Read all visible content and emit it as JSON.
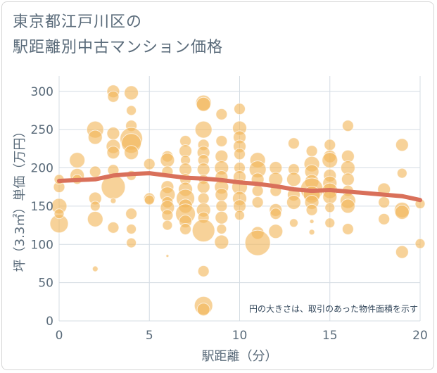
{
  "chart_data": {
    "type": "scatter",
    "title_lines": [
      "東京都江戸川区の",
      "駅距離別中古マンション価格"
    ],
    "xlabel": "駅距離（分）",
    "ylabel": "坪（3.3㎡）単価（万円）",
    "xlim": [
      0,
      20
    ],
    "ylim": [
      0,
      320
    ],
    "xticks": [
      0,
      5,
      10,
      15,
      20
    ],
    "yticks": [
      0,
      50,
      100,
      150,
      200,
      250,
      300
    ],
    "grid": true,
    "annotation": "円の大きさは、取引のあった物件面積を示す",
    "colors": {
      "bubble": "#f2b75b",
      "trend": "#d9705a",
      "grid": "#d4dce3",
      "text": "#5a6b7a"
    },
    "series": [
      {
        "type": "bubble",
        "points": [
          {
            "x": 0,
            "y": 127,
            "s": 13
          },
          {
            "x": 0,
            "y": 150,
            "s": 11
          },
          {
            "x": 0,
            "y": 175,
            "s": 8
          },
          {
            "x": 0,
            "y": 185,
            "s": 7
          },
          {
            "x": 0,
            "y": 140,
            "s": 7
          },
          {
            "x": 1,
            "y": 210,
            "s": 11
          },
          {
            "x": 1,
            "y": 190,
            "s": 10
          },
          {
            "x": 1,
            "y": 185,
            "s": 7
          },
          {
            "x": 2,
            "y": 250,
            "s": 12
          },
          {
            "x": 2,
            "y": 240,
            "s": 10
          },
          {
            "x": 2,
            "y": 195,
            "s": 8
          },
          {
            "x": 2,
            "y": 160,
            "s": 9
          },
          {
            "x": 2,
            "y": 150,
            "s": 7
          },
          {
            "x": 2,
            "y": 133,
            "s": 11
          },
          {
            "x": 2,
            "y": 68,
            "s": 4
          },
          {
            "x": 3,
            "y": 300,
            "s": 9
          },
          {
            "x": 3,
            "y": 293,
            "s": 8
          },
          {
            "x": 3,
            "y": 245,
            "s": 9
          },
          {
            "x": 3,
            "y": 228,
            "s": 10
          },
          {
            "x": 3,
            "y": 220,
            "s": 9
          },
          {
            "x": 3,
            "y": 197,
            "s": 8
          },
          {
            "x": 3,
            "y": 175,
            "s": 17
          },
          {
            "x": 3,
            "y": 157,
            "s": 4
          },
          {
            "x": 3,
            "y": 122,
            "s": 8
          },
          {
            "x": 4,
            "y": 298,
            "s": 10
          },
          {
            "x": 4,
            "y": 275,
            "s": 7
          },
          {
            "x": 4,
            "y": 255,
            "s": 8
          },
          {
            "x": 4,
            "y": 238,
            "s": 16
          },
          {
            "x": 4,
            "y": 232,
            "s": 14
          },
          {
            "x": 4,
            "y": 220,
            "s": 10
          },
          {
            "x": 4,
            "y": 190,
            "s": 7
          },
          {
            "x": 4,
            "y": 140,
            "s": 8
          },
          {
            "x": 4,
            "y": 120,
            "s": 7
          },
          {
            "x": 4,
            "y": 102,
            "s": 7
          },
          {
            "x": 5,
            "y": 205,
            "s": 8
          },
          {
            "x": 5,
            "y": 160,
            "s": 8
          },
          {
            "x": 5,
            "y": 158,
            "s": 7
          },
          {
            "x": 6,
            "y": 215,
            "s": 8
          },
          {
            "x": 6,
            "y": 210,
            "s": 10
          },
          {
            "x": 6,
            "y": 195,
            "s": 8
          },
          {
            "x": 6,
            "y": 175,
            "s": 9
          },
          {
            "x": 6,
            "y": 165,
            "s": 11
          },
          {
            "x": 6,
            "y": 155,
            "s": 8
          },
          {
            "x": 6,
            "y": 148,
            "s": 10
          },
          {
            "x": 6,
            "y": 138,
            "s": 8
          },
          {
            "x": 6,
            "y": 125,
            "s": 7
          },
          {
            "x": 6,
            "y": 85,
            "s": 2
          },
          {
            "x": 7,
            "y": 235,
            "s": 8
          },
          {
            "x": 7,
            "y": 222,
            "s": 9
          },
          {
            "x": 7,
            "y": 210,
            "s": 7
          },
          {
            "x": 7,
            "y": 198,
            "s": 9
          },
          {
            "x": 7,
            "y": 185,
            "s": 8
          },
          {
            "x": 7,
            "y": 172,
            "s": 10
          },
          {
            "x": 7,
            "y": 160,
            "s": 13
          },
          {
            "x": 7,
            "y": 150,
            "s": 10
          },
          {
            "x": 7,
            "y": 140,
            "s": 14
          },
          {
            "x": 7,
            "y": 130,
            "s": 9
          },
          {
            "x": 7,
            "y": 120,
            "s": 8
          },
          {
            "x": 8,
            "y": 285,
            "s": 11
          },
          {
            "x": 8,
            "y": 283,
            "s": 10
          },
          {
            "x": 8,
            "y": 250,
            "s": 12
          },
          {
            "x": 8,
            "y": 230,
            "s": 8
          },
          {
            "x": 8,
            "y": 220,
            "s": 9
          },
          {
            "x": 8,
            "y": 210,
            "s": 8
          },
          {
            "x": 8,
            "y": 198,
            "s": 9
          },
          {
            "x": 8,
            "y": 185,
            "s": 7
          },
          {
            "x": 8,
            "y": 175,
            "s": 9
          },
          {
            "x": 8,
            "y": 160,
            "s": 8
          },
          {
            "x": 8,
            "y": 145,
            "s": 10
          },
          {
            "x": 8,
            "y": 135,
            "s": 8
          },
          {
            "x": 8,
            "y": 118,
            "s": 16
          },
          {
            "x": 8,
            "y": 65,
            "s": 8
          },
          {
            "x": 8,
            "y": 20,
            "s": 13
          },
          {
            "x": 8,
            "y": 15,
            "s": 9
          },
          {
            "x": 9,
            "y": 270,
            "s": 8
          },
          {
            "x": 9,
            "y": 235,
            "s": 8
          },
          {
            "x": 9,
            "y": 215,
            "s": 9
          },
          {
            "x": 9,
            "y": 200,
            "s": 10
          },
          {
            "x": 9,
            "y": 188,
            "s": 9
          },
          {
            "x": 9,
            "y": 175,
            "s": 10
          },
          {
            "x": 9,
            "y": 165,
            "s": 9
          },
          {
            "x": 9,
            "y": 150,
            "s": 8
          },
          {
            "x": 9,
            "y": 135,
            "s": 9
          },
          {
            "x": 9,
            "y": 120,
            "s": 7
          },
          {
            "x": 9,
            "y": 103,
            "s": 10
          },
          {
            "x": 10,
            "y": 277,
            "s": 8
          },
          {
            "x": 10,
            "y": 252,
            "s": 10
          },
          {
            "x": 10,
            "y": 240,
            "s": 9
          },
          {
            "x": 10,
            "y": 228,
            "s": 9
          },
          {
            "x": 10,
            "y": 218,
            "s": 8
          },
          {
            "x": 10,
            "y": 200,
            "s": 8
          },
          {
            "x": 10,
            "y": 188,
            "s": 9
          },
          {
            "x": 10,
            "y": 175,
            "s": 11
          },
          {
            "x": 10,
            "y": 160,
            "s": 10
          },
          {
            "x": 10,
            "y": 150,
            "s": 9
          },
          {
            "x": 10,
            "y": 138,
            "s": 7
          },
          {
            "x": 11,
            "y": 210,
            "s": 11
          },
          {
            "x": 11,
            "y": 198,
            "s": 12
          },
          {
            "x": 11,
            "y": 185,
            "s": 9
          },
          {
            "x": 11,
            "y": 170,
            "s": 8
          },
          {
            "x": 11,
            "y": 155,
            "s": 8
          },
          {
            "x": 11,
            "y": 115,
            "s": 9
          },
          {
            "x": 11,
            "y": 102,
            "s": 18
          },
          {
            "x": 12,
            "y": 200,
            "s": 9
          },
          {
            "x": 12,
            "y": 185,
            "s": 10
          },
          {
            "x": 12,
            "y": 170,
            "s": 8
          },
          {
            "x": 12,
            "y": 145,
            "s": 9
          },
          {
            "x": 12,
            "y": 140,
            "s": 8
          },
          {
            "x": 12,
            "y": 117,
            "s": 10
          },
          {
            "x": 13,
            "y": 232,
            "s": 8
          },
          {
            "x": 13,
            "y": 198,
            "s": 8
          },
          {
            "x": 13,
            "y": 185,
            "s": 10
          },
          {
            "x": 13,
            "y": 165,
            "s": 9
          },
          {
            "x": 13,
            "y": 155,
            "s": 10
          },
          {
            "x": 13,
            "y": 128,
            "s": 6
          },
          {
            "x": 14,
            "y": 222,
            "s": 8
          },
          {
            "x": 14,
            "y": 205,
            "s": 11
          },
          {
            "x": 14,
            "y": 195,
            "s": 10
          },
          {
            "x": 14,
            "y": 182,
            "s": 10
          },
          {
            "x": 14,
            "y": 172,
            "s": 16
          },
          {
            "x": 14,
            "y": 165,
            "s": 12
          },
          {
            "x": 14,
            "y": 155,
            "s": 10
          },
          {
            "x": 14,
            "y": 145,
            "s": 8
          },
          {
            "x": 14,
            "y": 130,
            "s": 3
          },
          {
            "x": 14,
            "y": 116,
            "s": 4
          },
          {
            "x": 15,
            "y": 230,
            "s": 8
          },
          {
            "x": 15,
            "y": 215,
            "s": 9
          },
          {
            "x": 15,
            "y": 210,
            "s": 11
          },
          {
            "x": 15,
            "y": 190,
            "s": 9
          },
          {
            "x": 15,
            "y": 180,
            "s": 10
          },
          {
            "x": 15,
            "y": 170,
            "s": 11
          },
          {
            "x": 15,
            "y": 162,
            "s": 10
          },
          {
            "x": 15,
            "y": 148,
            "s": 7
          },
          {
            "x": 15,
            "y": 128,
            "s": 7
          },
          {
            "x": 16,
            "y": 255,
            "s": 8
          },
          {
            "x": 16,
            "y": 215,
            "s": 9
          },
          {
            "x": 16,
            "y": 200,
            "s": 10
          },
          {
            "x": 16,
            "y": 185,
            "s": 9
          },
          {
            "x": 16,
            "y": 170,
            "s": 8
          },
          {
            "x": 16,
            "y": 157,
            "s": 11
          },
          {
            "x": 16,
            "y": 150,
            "s": 10
          },
          {
            "x": 16,
            "y": 120,
            "s": 8
          },
          {
            "x": 18,
            "y": 172,
            "s": 9
          },
          {
            "x": 18,
            "y": 155,
            "s": 8
          },
          {
            "x": 18,
            "y": 133,
            "s": 8
          },
          {
            "x": 19,
            "y": 230,
            "s": 9
          },
          {
            "x": 19,
            "y": 193,
            "s": 7
          },
          {
            "x": 19,
            "y": 145,
            "s": 11
          },
          {
            "x": 19,
            "y": 142,
            "s": 10
          },
          {
            "x": 19,
            "y": 90,
            "s": 9
          },
          {
            "x": 20,
            "y": 153,
            "s": 7
          },
          {
            "x": 20,
            "y": 101,
            "s": 7
          }
        ]
      },
      {
        "type": "line",
        "x": [
          0,
          1,
          2,
          3,
          4,
          5,
          6,
          7,
          8,
          9,
          10,
          11,
          12,
          13,
          14,
          15,
          16,
          17,
          18,
          19,
          20
        ],
        "y": [
          183,
          184,
          185,
          190,
          192,
          193,
          190,
          187,
          186,
          184,
          181,
          179,
          176,
          172,
          170,
          171,
          169,
          167,
          165,
          163,
          158
        ]
      }
    ]
  }
}
